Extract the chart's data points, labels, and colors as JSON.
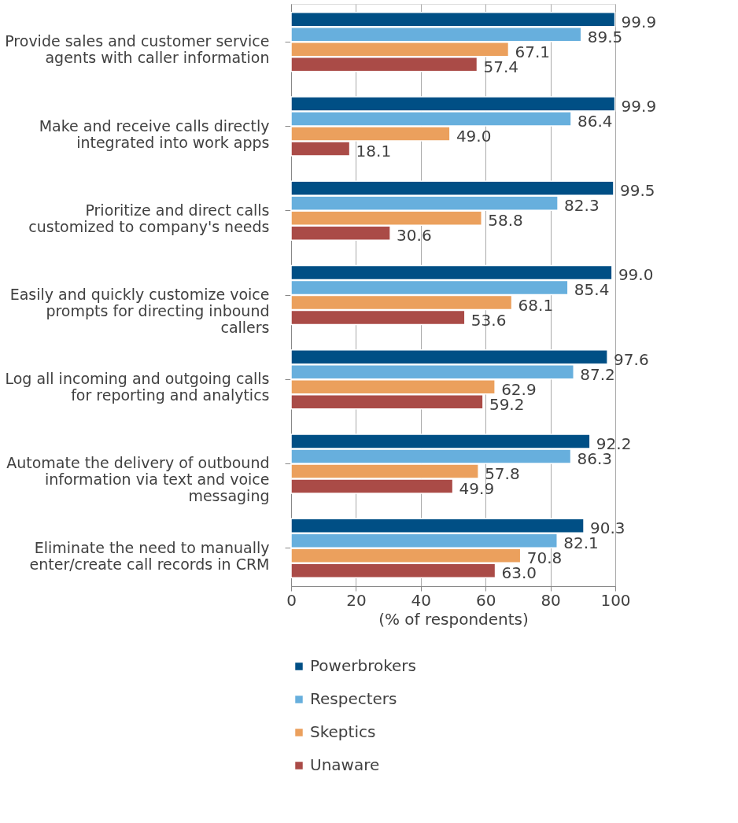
{
  "chart_data": {
    "type": "bar",
    "orientation": "horizontal",
    "xlabel": "(% of respondents)",
    "categories": [
      "Provide sales and customer service agents with caller information",
      "Make and receive calls directly integrated into work apps",
      "Prioritize and direct calls customized to company's needs",
      "Easily and quickly customize voice prompts for directing inbound callers",
      "Log all incoming and outgoing calls for reporting and analytics",
      "Automate the delivery of outbound information via text and voice messaging",
      "Eliminate the need to manually enter/create call records in CRM"
    ],
    "series": [
      {
        "name": "Powerbrokers",
        "color": "#004f85",
        "values": [
          99.9,
          99.9,
          99.5,
          99.0,
          97.6,
          92.2,
          90.3
        ],
        "value_labels": [
          "99.9",
          "99.9",
          "99.5",
          "99.0",
          "97.6",
          "92.2",
          "90.3"
        ]
      },
      {
        "name": "Respecters",
        "color": "#67afdd",
        "values": [
          89.5,
          86.4,
          82.3,
          85.4,
          87.2,
          86.3,
          82.1
        ],
        "value_labels": [
          "89.5",
          "86.4",
          "82.3",
          "85.4",
          "87.2",
          "86.3",
          "82.1"
        ]
      },
      {
        "name": "Skeptics",
        "color": "#eba05d",
        "values": [
          67.1,
          49.0,
          58.8,
          68.1,
          62.9,
          57.8,
          70.8
        ],
        "value_labels": [
          "67.1",
          "49.0",
          "58.8",
          "68.1",
          "62.9",
          "57.8",
          "70.8"
        ]
      },
      {
        "name": "Unaware",
        "color": "#aa4b47",
        "values": [
          57.4,
          18.1,
          30.6,
          53.6,
          59.2,
          49.9,
          63.0
        ],
        "value_labels": [
          "57.4",
          "18.1",
          "30.6",
          "53.6",
          "59.2",
          "49.9",
          "63.0"
        ]
      }
    ],
    "xlim": [
      0,
      100
    ],
    "xticks": [
      0,
      20,
      40,
      60,
      80,
      100
    ],
    "grid": "x",
    "legend": "bottom"
  }
}
